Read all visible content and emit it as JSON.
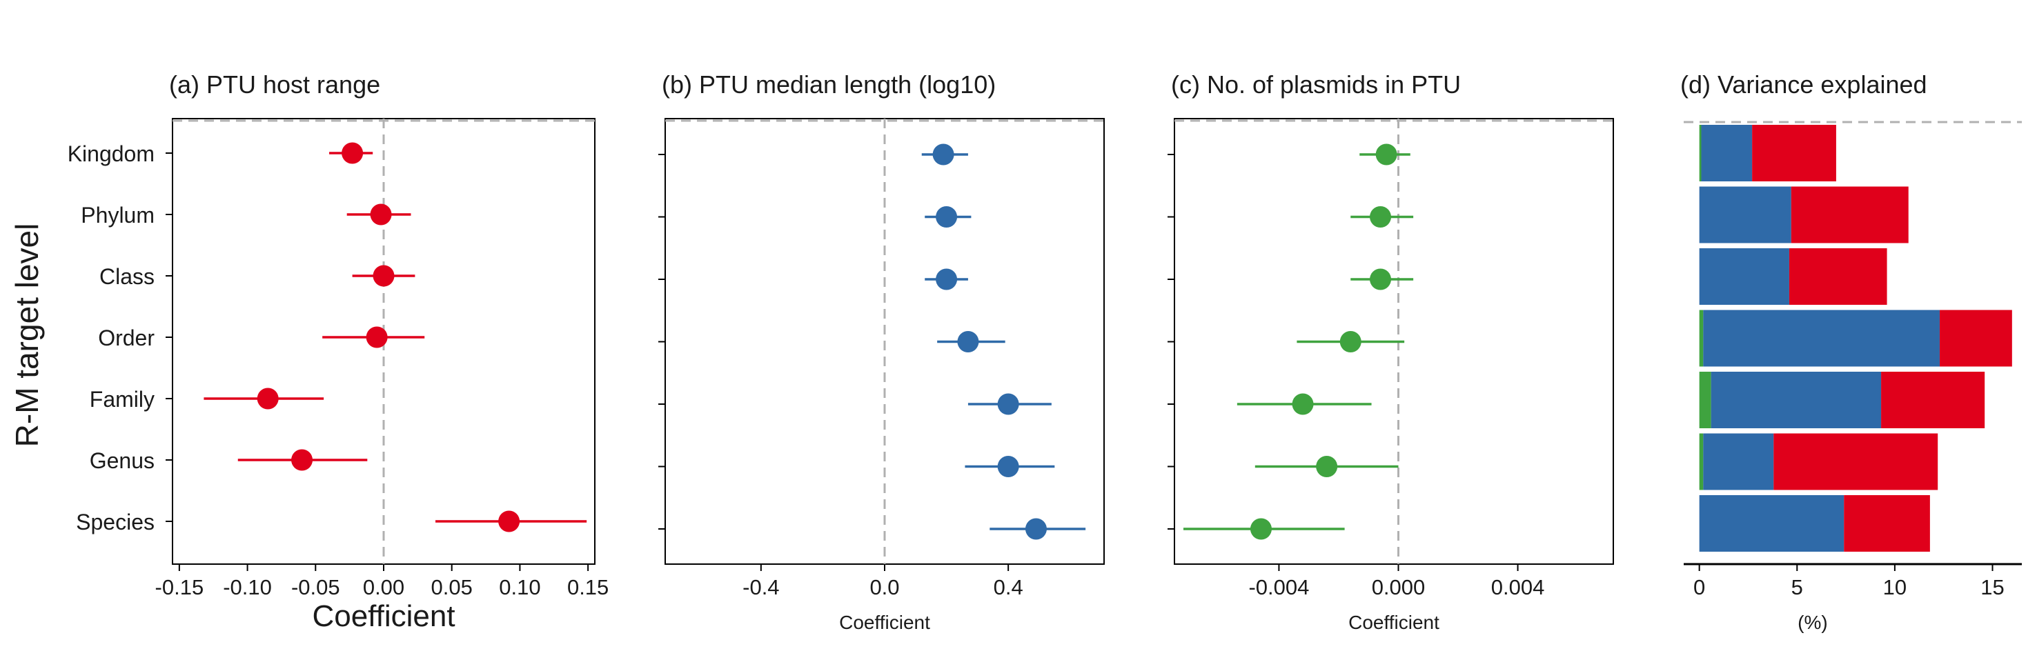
{
  "colors": {
    "host_range": "#e0001b",
    "length": "#2f6aa8",
    "plasmids": "#3fa33f",
    "refline": "#b0b0b0",
    "axis": "#000000"
  },
  "shared": {
    "ylabel": "R-M target level",
    "levels": [
      "Kingdom",
      "Phylum",
      "Class",
      "Order",
      "Family",
      "Genus",
      "Species"
    ]
  },
  "chart_data": [
    {
      "id": "a",
      "type": "scatter",
      "title": "(a) PTU host range",
      "xlabel": "Coefficient",
      "xlim": [
        -0.155,
        0.155
      ],
      "xticks": [
        -0.15,
        -0.1,
        -0.05,
        0.0,
        0.05,
        0.1,
        0.15
      ],
      "xtick_labels": [
        "-0.15",
        "-0.10",
        "-0.05",
        "0.00",
        "0.05",
        "0.10",
        "0.15"
      ],
      "color_key": "host_range",
      "points": [
        {
          "level": "Kingdom",
          "estimate": -0.023,
          "lower": -0.04,
          "upper": -0.008
        },
        {
          "level": "Phylum",
          "estimate": -0.002,
          "lower": -0.027,
          "upper": 0.02
        },
        {
          "level": "Class",
          "estimate": 0.0,
          "lower": -0.023,
          "upper": 0.023
        },
        {
          "level": "Order",
          "estimate": -0.005,
          "lower": -0.045,
          "upper": 0.03
        },
        {
          "level": "Family",
          "estimate": -0.085,
          "lower": -0.132,
          "upper": -0.044
        },
        {
          "level": "Genus",
          "estimate": -0.06,
          "lower": -0.107,
          "upper": -0.012
        },
        {
          "level": "Species",
          "estimate": 0.092,
          "lower": 0.038,
          "upper": 0.149
        }
      ]
    },
    {
      "id": "b",
      "type": "scatter",
      "title": "(b) PTU median length (log10)",
      "xlabel": "Coefficient",
      "xlim": [
        -0.71,
        0.71
      ],
      "xticks": [
        -0.4,
        0.0,
        0.4
      ],
      "xtick_labels": [
        "-0.4",
        "0.0",
        "0.4"
      ],
      "color_key": "length",
      "points": [
        {
          "level": "Kingdom",
          "estimate": 0.19,
          "lower": 0.12,
          "upper": 0.27
        },
        {
          "level": "Phylum",
          "estimate": 0.2,
          "lower": 0.13,
          "upper": 0.28
        },
        {
          "level": "Class",
          "estimate": 0.2,
          "lower": 0.13,
          "upper": 0.27
        },
        {
          "level": "Order",
          "estimate": 0.27,
          "lower": 0.17,
          "upper": 0.39
        },
        {
          "level": "Family",
          "estimate": 0.4,
          "lower": 0.27,
          "upper": 0.54
        },
        {
          "level": "Genus",
          "estimate": 0.4,
          "lower": 0.26,
          "upper": 0.55
        },
        {
          "level": "Species",
          "estimate": 0.49,
          "lower": 0.34,
          "upper": 0.65
        }
      ]
    },
    {
      "id": "c",
      "type": "scatter",
      "title": "(c) No. of plasmids in PTU",
      "xlabel": "Coefficient",
      "xlim": [
        -0.0075,
        0.0072
      ],
      "xticks": [
        -0.004,
        0.0,
        0.004
      ],
      "xtick_labels": [
        "-0.004",
        "0.000",
        "0.004"
      ],
      "color_key": "plasmids",
      "points": [
        {
          "level": "Kingdom",
          "estimate": -0.0004,
          "lower": -0.0013,
          "upper": 0.0004
        },
        {
          "level": "Phylum",
          "estimate": -0.0006,
          "lower": -0.0016,
          "upper": 0.0005
        },
        {
          "level": "Class",
          "estimate": -0.0006,
          "lower": -0.0016,
          "upper": 0.0005
        },
        {
          "level": "Order",
          "estimate": -0.0016,
          "lower": -0.0034,
          "upper": 0.0002
        },
        {
          "level": "Family",
          "estimate": -0.0032,
          "lower": -0.0054,
          "upper": -0.0009
        },
        {
          "level": "Genus",
          "estimate": -0.0024,
          "lower": -0.0048,
          "upper": 0.0
        },
        {
          "level": "Species",
          "estimate": -0.0046,
          "lower": -0.0072,
          "upper": -0.0018
        }
      ]
    },
    {
      "id": "d",
      "type": "bar",
      "orientation": "horizontal",
      "stacked": true,
      "title": "(d) Variance explained",
      "xlabel": "(%)",
      "xlim": [
        -0.8,
        16.5
      ],
      "xticks": [
        0,
        5,
        10,
        15
      ],
      "xtick_labels": [
        "0",
        "5",
        "10",
        "15"
      ],
      "series_color_keys": [
        "plasmids",
        "length",
        "host_range"
      ],
      "categories": [
        "Kingdom",
        "Phylum",
        "Class",
        "Order",
        "Family",
        "Genus",
        "Species"
      ],
      "series": [
        {
          "values": [
            0.1,
            0.0,
            0.0,
            0.2,
            0.6,
            0.2,
            0.0
          ]
        },
        {
          "values": [
            2.6,
            4.7,
            4.6,
            12.1,
            8.7,
            3.6,
            7.4
          ]
        },
        {
          "values": [
            4.3,
            6.0,
            5.0,
            3.7,
            5.3,
            8.4,
            4.4
          ]
        }
      ]
    }
  ]
}
